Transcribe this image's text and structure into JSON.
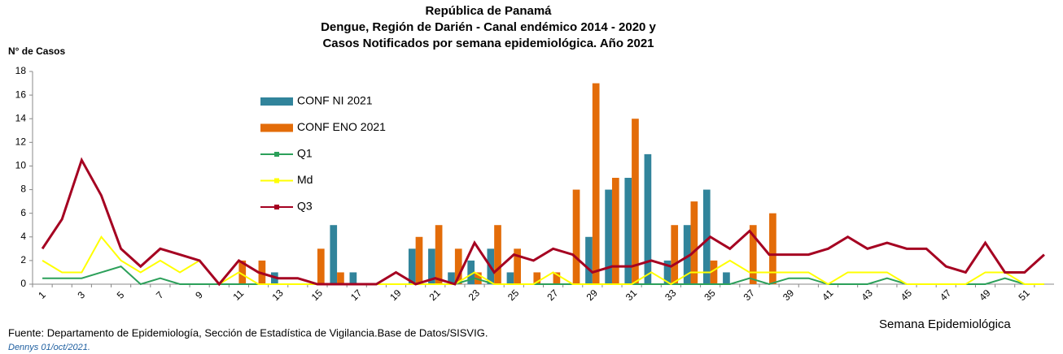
{
  "chart_data": {
    "type": "bar",
    "title": [
      "República de Panamá",
      "Dengue, Región de Darién - Canal endémico 2014 - 2020 y",
      "Casos Notificados por semana epidemiológica. Año 2021"
    ],
    "y_label": "N° de Casos",
    "x_label": "Semana Epidemiológica",
    "source": "Fuente: Departamento de Epidemiología, Sección de Estadística de Vigilancia.Base de Datos/SISVIG.",
    "note": "Dennys 01/oct/2021.",
    "categories": [
      1,
      null,
      3,
      null,
      5,
      null,
      7,
      null,
      9,
      null,
      11,
      null,
      13,
      null,
      15,
      null,
      17,
      null,
      19,
      null,
      21,
      null,
      23,
      null,
      25,
      null,
      27,
      null,
      29,
      null,
      31,
      null,
      33,
      null,
      35,
      null,
      37,
      null,
      39,
      null,
      41,
      null,
      43,
      null,
      45,
      null,
      47,
      null,
      49,
      null,
      51,
      null
    ],
    "ylim": [
      0,
      18
    ],
    "yticks": [
      0,
      2,
      4,
      6,
      8,
      10,
      12,
      14,
      16,
      18
    ],
    "series": [
      {
        "name": "CONF NI 2021",
        "kind": "bar",
        "color": "#31849b",
        "values": [
          0,
          0,
          0,
          0,
          0,
          0,
          0,
          0,
          0,
          0,
          0,
          0,
          1,
          0,
          0,
          5,
          1,
          0,
          0,
          3,
          3,
          1,
          2,
          3,
          1,
          0,
          0,
          0,
          4,
          8,
          9,
          11,
          2,
          5,
          8,
          1,
          0,
          0,
          0,
          0,
          0,
          0,
          0,
          0,
          0,
          0,
          0,
          0,
          0,
          0,
          0,
          0
        ]
      },
      {
        "name": "CONF ENO 2021",
        "kind": "bar",
        "color": "#e36c09",
        "values": [
          0,
          0,
          0,
          0,
          0,
          0,
          0,
          0,
          0,
          0,
          2,
          2,
          0,
          0,
          3,
          1,
          0,
          0,
          0,
          4,
          5,
          3,
          1,
          5,
          3,
          1,
          1,
          8,
          17,
          9,
          14,
          0,
          5,
          7,
          2,
          0,
          5,
          6,
          0,
          0,
          0,
          0,
          0,
          0,
          0,
          0,
          0,
          0,
          0,
          0,
          0,
          0
        ]
      },
      {
        "name": "Q1",
        "kind": "line",
        "color": "#2ca05a",
        "values": [
          0.5,
          0.5,
          0.5,
          1,
          1.5,
          0,
          0.5,
          0,
          0,
          0,
          0,
          0,
          0,
          0,
          0,
          0,
          0,
          0,
          0,
          0,
          0,
          0,
          0.5,
          0,
          0,
          0,
          0,
          0,
          0,
          0,
          0,
          0,
          0,
          0,
          0,
          0,
          0.5,
          0,
          0.5,
          0.5,
          0,
          0,
          0,
          0.5,
          0,
          0,
          0,
          0,
          0,
          0.5,
          0,
          0
        ]
      },
      {
        "name": "Md",
        "kind": "line",
        "color": "#ffff00",
        "values": [
          2,
          1,
          1,
          4,
          2,
          1,
          2,
          1,
          2,
          0,
          1,
          0,
          0,
          0,
          0,
          0,
          0,
          0,
          0,
          0,
          0,
          0,
          1,
          0,
          0,
          0,
          1,
          0,
          0,
          0,
          0,
          1,
          0,
          1,
          1,
          2,
          1,
          1,
          1,
          1,
          0,
          1,
          1,
          1,
          0,
          0,
          0,
          0,
          1,
          1,
          0,
          0
        ]
      },
      {
        "name": "Q3",
        "kind": "line",
        "color": "#a50021",
        "values": [
          3,
          5.5,
          10.5,
          7.5,
          3,
          1.5,
          3,
          2.5,
          2,
          0,
          2,
          1,
          0.5,
          0.5,
          0,
          0,
          0,
          0,
          1,
          0,
          0.5,
          0,
          3.5,
          1,
          2.5,
          2,
          3,
          2.5,
          1,
          1.5,
          1.5,
          2,
          1.5,
          2.5,
          4,
          3,
          4.5,
          2.5,
          2.5,
          2.5,
          3,
          4,
          3,
          3.5,
          3,
          3,
          1.5,
          1,
          3.5,
          1,
          1,
          2.5
        ]
      }
    ]
  }
}
